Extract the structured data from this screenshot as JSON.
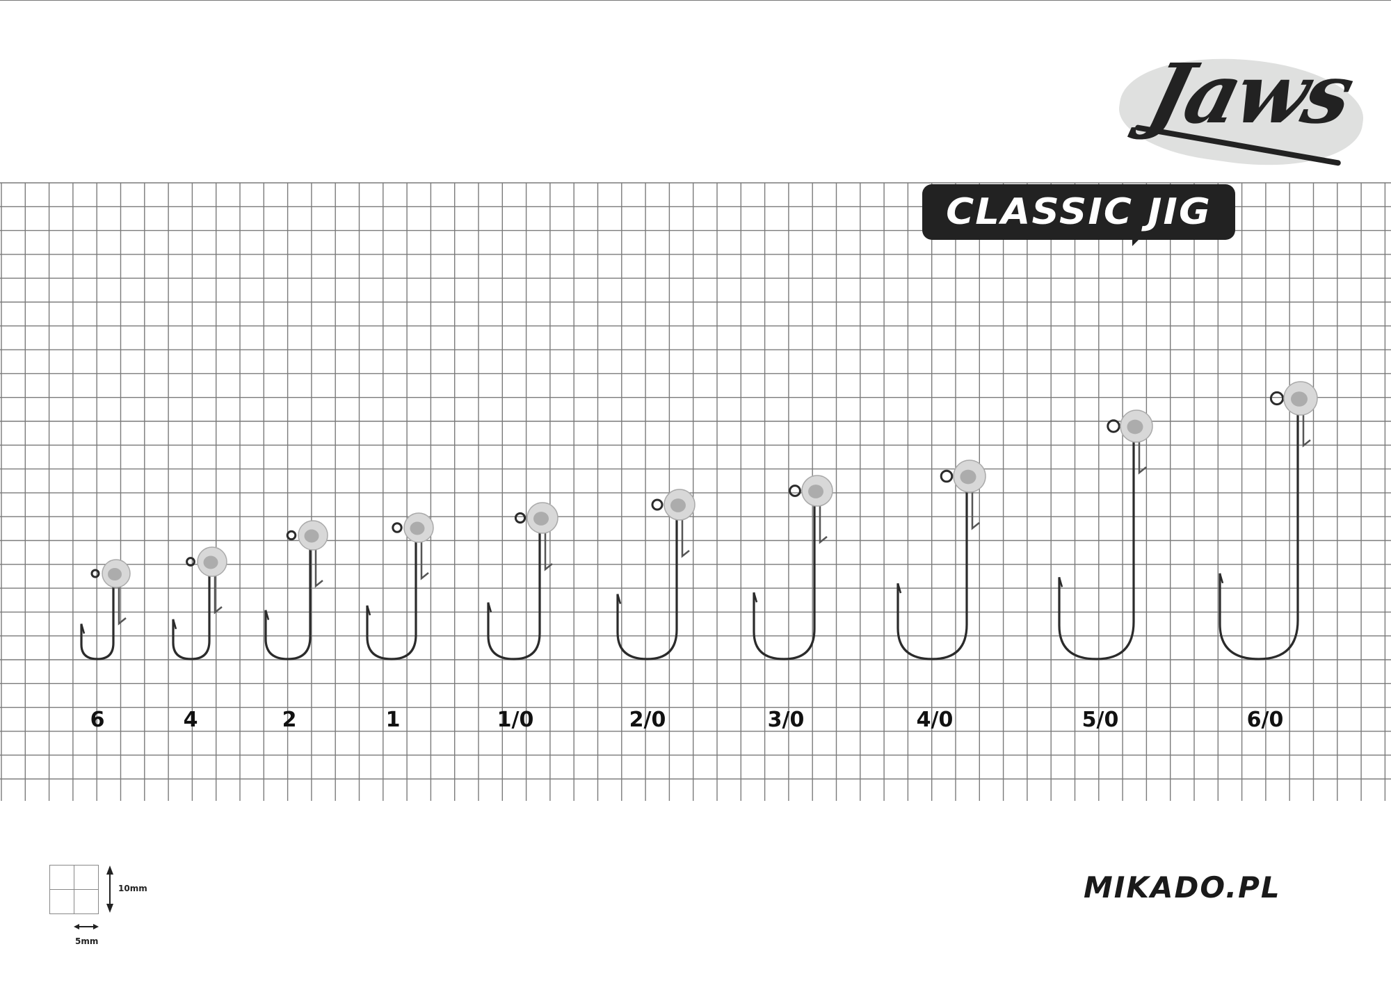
{
  "brand": {
    "logo_text": "Jaws",
    "product_badge": "CLASSIC JIG",
    "website": "MIKADO.PL"
  },
  "hook_sizes": [
    "6",
    "4",
    "2",
    "1",
    "1/0",
    "2/0",
    "3/0",
    "4/0",
    "5/0",
    "6/0"
  ],
  "scale_legend": {
    "vertical": "10mm",
    "horizontal": "5mm"
  },
  "colors": {
    "grid_line": "#7a7a7a",
    "hook": "#2b2b2b",
    "jig_head": "#d8d8d8",
    "badge": "#222222"
  }
}
